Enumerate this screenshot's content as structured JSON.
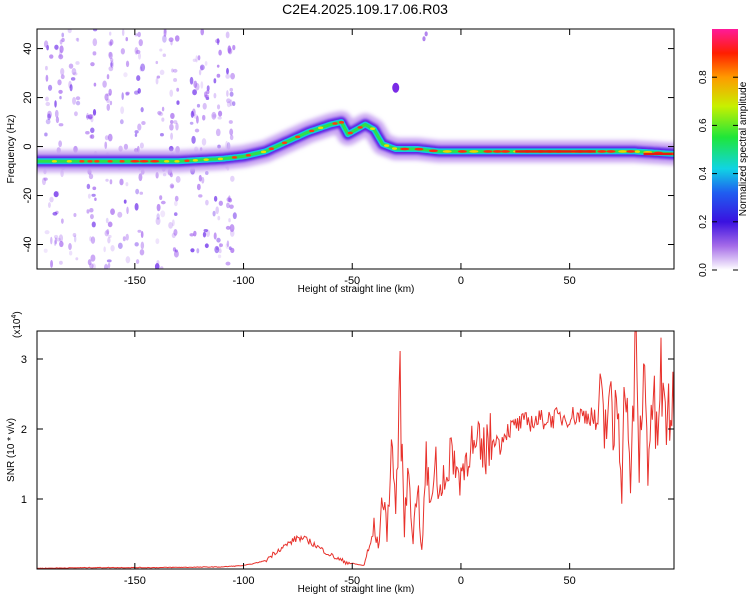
{
  "title": "C2E4.2025.109.17.06.R03",
  "colors": {
    "signal_line": "#e8322c",
    "axis": "#000000",
    "scatter_point": "#7a2be6"
  },
  "chart_data": [
    {
      "type": "heatmap",
      "name": "spectrogram",
      "xlabel": "Height of straight line (km)",
      "ylabel": "Frequency (Hz)",
      "xlim": [
        -195,
        98
      ],
      "ylim": [
        -50,
        48
      ],
      "x_ticks": [
        -150,
        -100,
        -50,
        0,
        50
      ],
      "y_ticks": [
        -40,
        -20,
        0,
        20,
        40
      ],
      "ridge": {
        "x": [
          -195,
          -170,
          -150,
          -130,
          -110,
          -100,
          -90,
          -80,
          -70,
          -60,
          -55,
          -52,
          -48,
          -44,
          -40,
          -36,
          -30,
          -20,
          -10,
          0,
          10,
          20,
          40,
          60,
          70,
          80,
          98
        ],
        "y": [
          -6,
          -6,
          -6,
          -6,
          -5,
          -4,
          -2,
          2,
          6,
          9,
          10,
          5,
          7,
          9,
          7,
          1,
          -1,
          -1,
          -2,
          -2,
          -2,
          -2,
          -2,
          -2,
          -2,
          -2,
          -3
        ]
      },
      "artifacts": [
        {
          "x": -30,
          "y": 24
        },
        {
          "x": -17,
          "y": 44
        },
        {
          "x": -16,
          "y": 46
        }
      ],
      "colorbar": {
        "label": "Normalized spectral amplitude",
        "range": [
          0.0,
          1.0
        ],
        "ticks": [
          0.0,
          0.2,
          0.4,
          0.6,
          0.8
        ]
      }
    },
    {
      "type": "line",
      "name": "snr",
      "xlabel": "Height of straight line (km)",
      "ylabel": "SNR (10 * v/v)",
      "y_multiplier": "(x10",
      "y_multiplier_exp": "4",
      "y_multiplier_close": ")",
      "xlim": [
        -195,
        98
      ],
      "ylim": [
        0,
        3.4
      ],
      "x_ticks": [
        -150,
        -100,
        -50,
        0,
        50
      ],
      "y_ticks": [
        1,
        2,
        3
      ],
      "series": [
        {
          "name": "SNR",
          "x": [
            -195,
            -170,
            -140,
            -110,
            -100,
            -95,
            -90,
            -85,
            -80,
            -75,
            -70,
            -65,
            -60,
            -55,
            -50,
            -45,
            -42,
            -40,
            -38,
            -36,
            -34,
            -32,
            -30,
            -28,
            -26,
            -24,
            -22,
            -20,
            -18,
            -16,
            -14,
            -12,
            -10,
            -8,
            -6,
            -4,
            -2,
            0,
            2,
            4,
            6,
            8,
            10,
            12,
            14,
            16,
            18,
            20,
            25,
            30,
            35,
            40,
            45,
            50,
            55,
            60,
            62,
            64,
            66,
            68,
            70,
            72,
            74,
            76,
            78,
            80,
            82,
            84,
            86,
            88,
            90,
            92,
            94,
            96,
            98
          ],
          "y": [
            0.01,
            0.02,
            0.02,
            0.03,
            0.05,
            0.08,
            0.12,
            0.25,
            0.35,
            0.45,
            0.4,
            0.3,
            0.2,
            0.12,
            0.08,
            0.05,
            0.3,
            0.6,
            0.3,
            1.1,
            0.5,
            1.8,
            0.9,
            2.5,
            0.6,
            1.5,
            0.4,
            1.3,
            0.2,
            1.6,
            0.8,
            1.7,
            1.0,
            1.5,
            1.1,
            1.9,
            1.3,
            1.4,
            1.5,
            1.9,
            1.6,
            1.7,
            1.6,
            1.8,
            1.8,
            1.9,
            1.75,
            1.95,
            2.05,
            2.1,
            2.12,
            2.15,
            2.16,
            2.18,
            2.2,
            2.2,
            2.12,
            2.25,
            1.95,
            2.5,
            1.8,
            2.7,
            1.3,
            3.0,
            0.9,
            3.3,
            1.5,
            2.9,
            1.6,
            2.5,
            1.8,
            2.7,
            2.0,
            2.4,
            2.1
          ]
        }
      ]
    }
  ]
}
